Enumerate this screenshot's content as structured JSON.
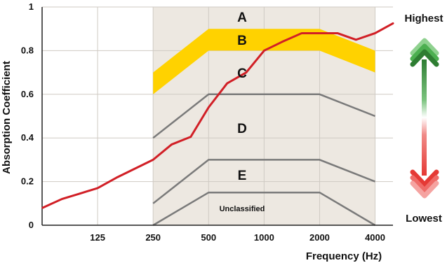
{
  "chart_data": {
    "type": "line",
    "xlabel": "Frequency (Hz)",
    "ylabel": "Absorption Coefficient",
    "ylim": [
      0,
      1
    ],
    "y_ticks": [
      "0",
      "0.2",
      "0.4",
      "0.6",
      "0.8",
      "1"
    ],
    "x_categories": [
      "125",
      "250",
      "500",
      "1000",
      "2000",
      "4000"
    ],
    "grid": true,
    "shaded_band": {
      "from": "250",
      "to": "4000",
      "color": "#ede8e1"
    },
    "class_labels": [
      "A",
      "B",
      "C",
      "D",
      "E",
      "Unclassified"
    ],
    "class_b_band": {
      "color": "#ffd200",
      "x": [
        "250",
        "500",
        "1000",
        "2000",
        "4000"
      ],
      "lower": [
        0.6,
        0.8,
        0.8,
        0.8,
        0.7
      ],
      "upper": [
        0.7,
        0.9,
        0.9,
        0.9,
        0.8
      ]
    },
    "class_boundaries": [
      {
        "x": [
          "250",
          "500",
          "1000",
          "2000",
          "4000"
        ],
        "values": [
          0.4,
          0.6,
          0.6,
          0.6,
          0.5
        ]
      },
      {
        "x": [
          "250",
          "500",
          "1000",
          "2000",
          "4000"
        ],
        "values": [
          0.1,
          0.3,
          0.3,
          0.3,
          0.2
        ]
      },
      {
        "x": [
          "250",
          "500",
          "1000",
          "2000",
          "4000"
        ],
        "values": [
          0.0,
          0.15,
          0.15,
          0.15,
          0.0
        ]
      }
    ],
    "series": [
      {
        "color": "#d11f26",
        "x": [
          63,
          80,
          100,
          125,
          160,
          200,
          250,
          315,
          400,
          500,
          630,
          800,
          1000,
          1250,
          1600,
          2000,
          2500,
          3150,
          4000,
          5000
        ],
        "values": [
          0.08,
          0.12,
          0.145,
          0.17,
          0.22,
          0.26,
          0.3,
          0.37,
          0.405,
          0.54,
          0.65,
          0.7,
          0.8,
          0.84,
          0.88,
          0.88,
          0.88,
          0.85,
          0.88,
          0.925
        ]
      }
    ],
    "side_scale": {
      "top": "Highest",
      "bottom": "Lowest",
      "top_color": "#2e7d32",
      "bottom_color": "#e53935"
    }
  }
}
